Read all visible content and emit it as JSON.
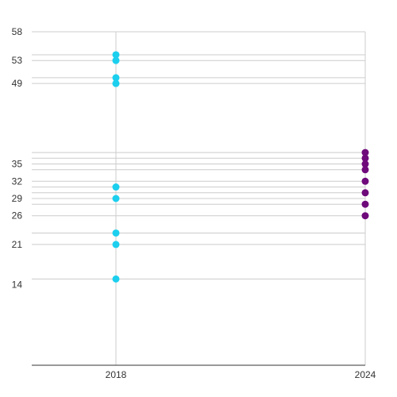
{
  "chart_data": {
    "type": "scatter",
    "title": "",
    "xlabel": "",
    "ylabel": "",
    "x_ticks": [
      "2018",
      "2024"
    ],
    "y_tick_labels": [
      14,
      21,
      26,
      29,
      32,
      35,
      49,
      53,
      58
    ],
    "ylim": [
      0,
      58
    ],
    "grid": true,
    "series": [
      {
        "x": "2018",
        "color": "#1ccfee",
        "values": [
          54,
          53,
          50,
          49,
          31,
          29,
          23,
          21,
          15
        ]
      },
      {
        "x": "2024",
        "color": "#6f0a7b",
        "values": [
          37,
          36,
          35,
          34,
          32,
          30,
          28,
          26
        ]
      }
    ]
  }
}
